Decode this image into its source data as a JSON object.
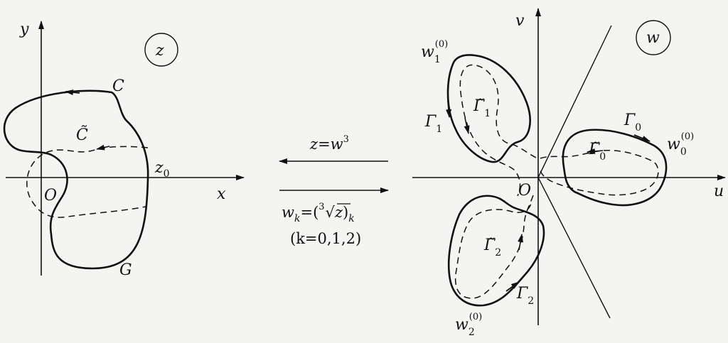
{
  "z_plane": {
    "axis_x": "x",
    "axis_y": "y",
    "origin": "O",
    "plane_label": "z",
    "curve_outer": "C",
    "curve_dashed": "C̃",
    "curve_bottom": "G",
    "point": "z",
    "point_sub": "0"
  },
  "mapping": {
    "forward_lhs": "z=w",
    "forward_exp": "3",
    "inverse_lhs": "w",
    "inverse_sub": "k",
    "inverse_eq": "=(",
    "root_index": "3",
    "root_arg": "z",
    "inverse_close": ")",
    "inverse_close_sub": "k",
    "k_range": "(k=0,1,2)"
  },
  "w_plane": {
    "axis_u": "u",
    "axis_v": "v",
    "origin": "O",
    "plane_label": "w",
    "w1": {
      "base": "w",
      "sub": "1",
      "sup": "(0)"
    },
    "w0": {
      "base": "w",
      "sub": "0",
      "sup": "(0)"
    },
    "w2": {
      "base": "w",
      "sub": "2",
      "sup": "(0)"
    },
    "gamma1": {
      "base": "Γ",
      "sub": "1"
    },
    "gamma1_tilde": {
      "base": "Γ̃",
      "sub": "1"
    },
    "gamma0": {
      "base": "Γ",
      "sub": "0"
    },
    "gamma0_tilde": {
      "base": "Γ̃",
      "sub": "0"
    },
    "gamma2": {
      "base": "Γ",
      "sub": "2"
    },
    "gamma2_tilde": {
      "base": "Γ̃",
      "sub": "2"
    }
  },
  "colors": {
    "ink": "#111111",
    "paper": "#f4f4f2"
  }
}
